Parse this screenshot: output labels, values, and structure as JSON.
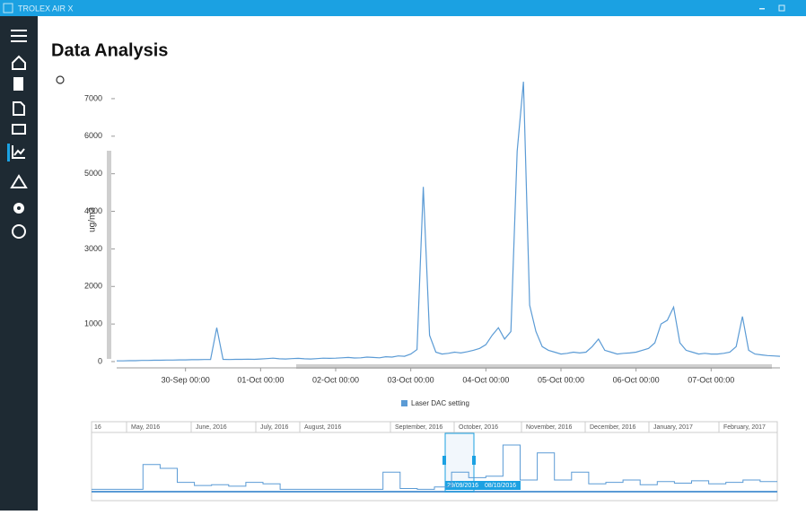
{
  "window": {
    "title": "TROLEX AIR X"
  },
  "page": {
    "title": "Data Analysis"
  },
  "chart_data": {
    "type": "line",
    "y_label": "ug/m3",
    "x": [
      "29-Sep 02:00",
      "29-Sep 04:00",
      "29-Sep 06:00",
      "29-Sep 08:00",
      "29-Sep 10:00",
      "29-Sep 12:00",
      "29-Sep 14:00",
      "29-Sep 16:00",
      "29-Sep 18:00",
      "29-Sep 20:00",
      "29-Sep 22:00",
      "30-Sep 00:00",
      "30-Sep 02:00",
      "30-Sep 04:00",
      "30-Sep 06:00",
      "30-Sep 08:00",
      "30-Sep 10:00",
      "30-Sep 12:00",
      "30-Sep 14:00",
      "30-Sep 16:00",
      "30-Sep 18:00",
      "30-Sep 20:00",
      "30-Sep 22:00",
      "01-Oct 00:00",
      "01-Oct 02:00",
      "01-Oct 04:00",
      "01-Oct 06:00",
      "01-Oct 08:00",
      "01-Oct 10:00",
      "01-Oct 12:00",
      "01-Oct 14:00",
      "01-Oct 16:00",
      "01-Oct 18:00",
      "01-Oct 20:00",
      "01-Oct 22:00",
      "02-Oct 00:00",
      "02-Oct 02:00",
      "02-Oct 04:00",
      "02-Oct 06:00",
      "02-Oct 08:00",
      "02-Oct 10:00",
      "02-Oct 12:00",
      "02-Oct 14:00",
      "02-Oct 16:00",
      "02-Oct 18:00",
      "02-Oct 20:00",
      "02-Oct 22:00",
      "03-Oct 00:00",
      "03-Oct 02:00",
      "03-Oct 04:00",
      "03-Oct 06:00",
      "03-Oct 08:00",
      "03-Oct 10:00",
      "03-Oct 12:00",
      "03-Oct 14:00",
      "03-Oct 16:00",
      "03-Oct 18:00",
      "03-Oct 20:00",
      "03-Oct 22:00",
      "04-Oct 00:00",
      "04-Oct 02:00",
      "04-Oct 04:00",
      "04-Oct 06:00",
      "04-Oct 08:00",
      "04-Oct 10:00",
      "04-Oct 12:00",
      "04-Oct 14:00",
      "04-Oct 16:00",
      "04-Oct 18:00",
      "04-Oct 20:00",
      "04-Oct 22:00",
      "05-Oct 00:00",
      "05-Oct 02:00",
      "05-Oct 04:00",
      "05-Oct 06:00",
      "05-Oct 08:00",
      "05-Oct 10:00",
      "05-Oct 12:00",
      "05-Oct 14:00",
      "05-Oct 16:00",
      "05-Oct 18:00",
      "05-Oct 20:00",
      "05-Oct 22:00",
      "06-Oct 00:00",
      "06-Oct 02:00",
      "06-Oct 04:00",
      "06-Oct 06:00",
      "06-Oct 08:00",
      "06-Oct 10:00",
      "06-Oct 12:00",
      "06-Oct 14:00",
      "06-Oct 16:00",
      "06-Oct 18:00",
      "06-Oct 20:00",
      "06-Oct 22:00",
      "07-Oct 00:00",
      "07-Oct 02:00",
      "07-Oct 04:00",
      "07-Oct 06:00",
      "07-Oct 08:00",
      "07-Oct 10:00",
      "07-Oct 12:00",
      "07-Oct 14:00",
      "07-Oct 16:00",
      "07-Oct 18:00",
      "07-Oct 20:00",
      "07-Oct 22:00"
    ],
    "series": [
      {
        "name": "Laser DAC setting",
        "color": "#5b9bd5",
        "values": [
          20,
          20,
          25,
          25,
          30,
          30,
          35,
          35,
          40,
          40,
          45,
          45,
          50,
          50,
          55,
          55,
          900,
          60,
          55,
          60,
          60,
          65,
          60,
          70,
          80,
          90,
          75,
          70,
          80,
          85,
          75,
          70,
          80,
          90,
          85,
          90,
          100,
          110,
          95,
          100,
          120,
          110,
          100,
          130,
          120,
          150,
          140,
          200,
          320,
          4650,
          700,
          250,
          200,
          220,
          250,
          230,
          260,
          300,
          350,
          450,
          700,
          900,
          600,
          800,
          5600,
          7450,
          1500,
          800,
          400,
          300,
          250,
          200,
          220,
          250,
          230,
          250,
          400,
          600,
          300,
          250,
          200,
          220,
          230,
          250,
          300,
          350,
          500,
          1000,
          1100,
          1450,
          500,
          300,
          250,
          200,
          220,
          200,
          200,
          220,
          250,
          400,
          1200,
          300,
          200,
          180,
          160,
          150,
          140
        ]
      }
    ],
    "xlim": [
      "29-Sep 02:00",
      "07-Oct 22:00"
    ],
    "xticks": [
      "30-Sep 00:00",
      "01-Oct 00:00",
      "02-Oct 00:00",
      "03-Oct 00:00",
      "04-Oct 00:00",
      "05-Oct 00:00",
      "06-Oct 00:00",
      "07-Oct 00:00"
    ],
    "ylim": [
      0,
      7500
    ],
    "yticks": [
      0,
      1000,
      2000,
      3000,
      4000,
      5000,
      6000,
      7000
    ],
    "legend": "bottom"
  },
  "navigator": {
    "months": [
      "16",
      "May, 2016",
      "June, 2016",
      "July, 2016",
      "August, 2016",
      "September, 2016",
      "October, 2016",
      "November, 2016",
      "December, 2016",
      "January, 2017",
      "February, 2017"
    ],
    "range_start": "29/09/2016",
    "range_end": "08/10/2016",
    "values": [
      300,
      300,
      300,
      3500,
      3000,
      1200,
      800,
      900,
      700,
      1200,
      1000,
      300,
      300,
      300,
      300,
      300,
      300,
      2500,
      400,
      300,
      600,
      2500,
      1800,
      2000,
      6000,
      1500,
      5000,
      1500,
      2500,
      1000,
      1200,
      1500,
      900,
      1300,
      1100,
      1400,
      1000,
      1200,
      1500,
      1300
    ]
  }
}
